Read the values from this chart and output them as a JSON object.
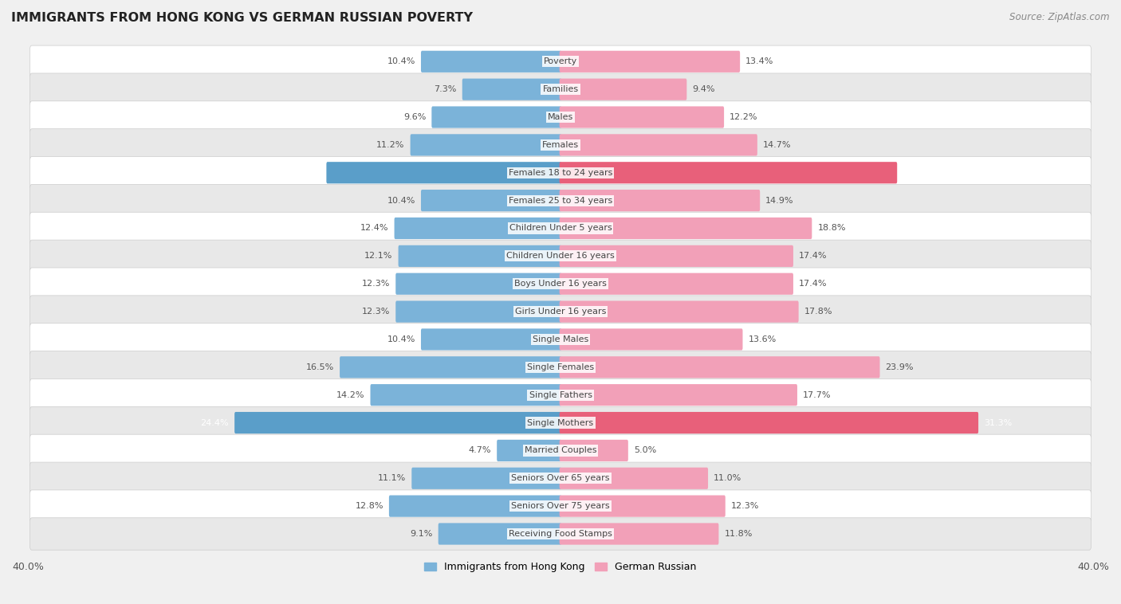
{
  "title": "IMMIGRANTS FROM HONG KONG VS GERMAN RUSSIAN POVERTY",
  "source": "Source: ZipAtlas.com",
  "categories": [
    "Poverty",
    "Families",
    "Males",
    "Females",
    "Females 18 to 24 years",
    "Females 25 to 34 years",
    "Children Under 5 years",
    "Children Under 16 years",
    "Boys Under 16 years",
    "Girls Under 16 years",
    "Single Males",
    "Single Females",
    "Single Fathers",
    "Single Mothers",
    "Married Couples",
    "Seniors Over 65 years",
    "Seniors Over 75 years",
    "Receiving Food Stamps"
  ],
  "hong_kong_values": [
    10.4,
    7.3,
    9.6,
    11.2,
    17.5,
    10.4,
    12.4,
    12.1,
    12.3,
    12.3,
    10.4,
    16.5,
    14.2,
    24.4,
    4.7,
    11.1,
    12.8,
    9.1
  ],
  "german_russian_values": [
    13.4,
    9.4,
    12.2,
    14.7,
    25.2,
    14.9,
    18.8,
    17.4,
    17.4,
    17.8,
    13.6,
    23.9,
    17.7,
    31.3,
    5.0,
    11.0,
    12.3,
    11.8
  ],
  "hong_kong_color": "#7bb3d9",
  "german_russian_color": "#f2a0b8",
  "hong_kong_highlight_color": "#5a9ec9",
  "german_russian_highlight_color": "#e8607a",
  "hong_kong_label": "Immigrants from Hong Kong",
  "german_russian_label": "German Russian",
  "axis_max": 40.0,
  "background_color": "#f0f0f0",
  "row_color_even": "#ffffff",
  "row_color_odd": "#e8e8e8",
  "highlight_indices": [
    4,
    13
  ],
  "value_label_color": "#555555",
  "value_label_highlight_color": "#ffffff",
  "category_label_color": "#444444",
  "title_color": "#222222",
  "source_color": "#888888"
}
